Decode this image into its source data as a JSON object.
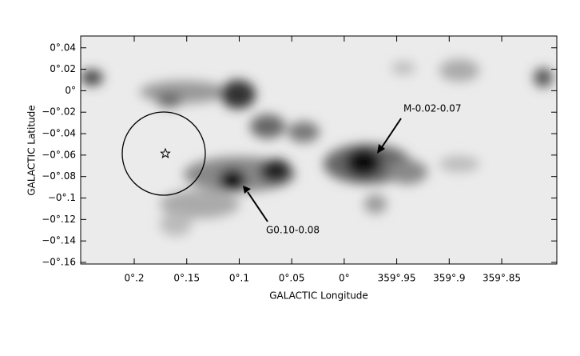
{
  "chart_data": {
    "type": "image",
    "xlabel": "GALACTIC Longitude",
    "ylabel": "GALACTIC Latitude",
    "xlim": [
      0.251,
      -0.2025
    ],
    "ylim": [
      -0.1615,
      0.051
    ],
    "xticks": [
      {
        "value": 0.2,
        "label": "0°.2"
      },
      {
        "value": 0.15,
        "label": "0°.15"
      },
      {
        "value": 0.1,
        "label": "0°.1"
      },
      {
        "value": 0.05,
        "label": "0°.05"
      },
      {
        "value": 0,
        "label": "0°"
      },
      {
        "value": -0.05,
        "label": "359°.95"
      },
      {
        "value": -0.1,
        "label": "359°.9"
      },
      {
        "value": -0.15,
        "label": "359°.85"
      }
    ],
    "yticks": [
      {
        "value": 0.04,
        "label": "0°.04"
      },
      {
        "value": 0.02,
        "label": "0°.02"
      },
      {
        "value": 0,
        "label": "0°"
      },
      {
        "value": -0.02,
        "label": "−0°.02"
      },
      {
        "value": -0.04,
        "label": "−0°.04"
      },
      {
        "value": -0.06,
        "label": "−0°.06"
      },
      {
        "value": -0.08,
        "label": "−0°.08"
      },
      {
        "value": -0.1,
        "label": "−0°.1"
      },
      {
        "value": -0.12,
        "label": "−0°.12"
      },
      {
        "value": -0.14,
        "label": "−0°.14"
      },
      {
        "value": -0.16,
        "label": "−0°.16"
      }
    ],
    "annotations": [
      "M-0.02-0.07",
      "G0.10-0.08"
    ]
  }
}
